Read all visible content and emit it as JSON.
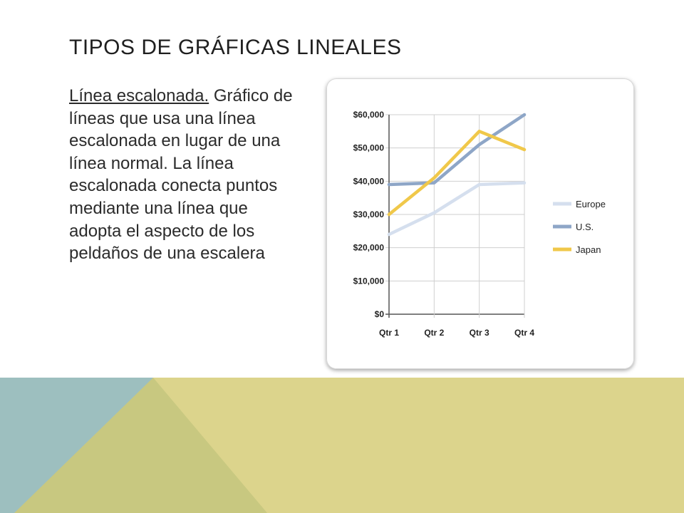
{
  "slide": {
    "title": "TIPOS DE GRÁFICAS LINEALES",
    "lead": "Línea escalonada.",
    "body": "Gráfico de líneas que usa una línea escalonada en lugar de una línea normal. La línea escalonada conecta puntos mediante una línea que adopta el aspecto de los peldaños de una escalera"
  },
  "colors": {
    "background": "#ffffff",
    "deco_blue": "#9dbfbf",
    "deco_olive": "#c8c880",
    "deco_yellow": "#dcd48c",
    "europe": "#d5dfee",
    "us": "#8ea6c7",
    "japan": "#f0c84a"
  },
  "chart_data": {
    "type": "line",
    "categories": [
      "Qtr 1",
      "Qtr 2",
      "Qtr 3",
      "Qtr 4"
    ],
    "series": [
      {
        "name": "Europe",
        "values": [
          24000,
          30500,
          39000,
          39500
        ],
        "color": "#d5dfee"
      },
      {
        "name": "U.S.",
        "values": [
          39000,
          39500,
          51000,
          60000
        ],
        "color": "#8ea6c7"
      },
      {
        "name": "Japan",
        "values": [
          30000,
          41000,
          55000,
          49500
        ],
        "color": "#f0c84a"
      }
    ],
    "yticks": [
      "$0",
      "$10,000",
      "$20,000",
      "$30,000",
      "$40,000",
      "$50,000",
      "$60,000"
    ],
    "ylim": [
      0,
      60000
    ],
    "grid": true,
    "legend": "right"
  }
}
